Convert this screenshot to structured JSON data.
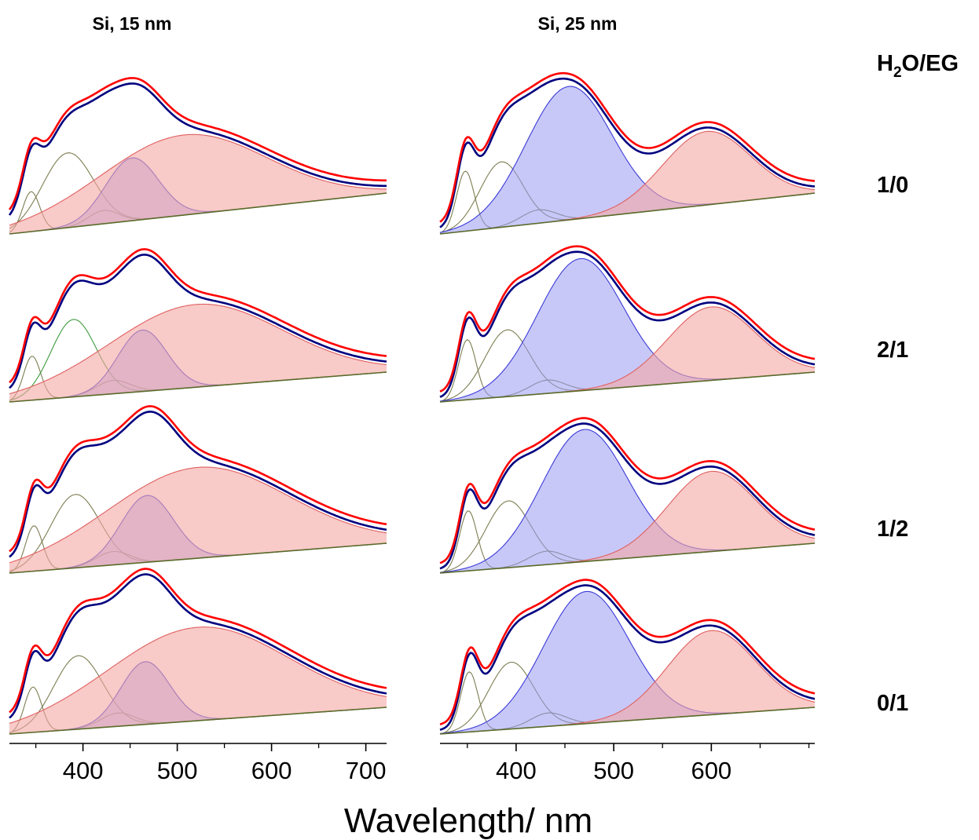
{
  "chart_data": {
    "type": "area",
    "xlabel": "Wavelength/ nm",
    "legend_header": {
      "main": "H",
      "sub": "2",
      "rest": "O/EG"
    },
    "colors": {
      "measured": "#ff0000",
      "fit": "#00007f",
      "blue_band": "#9a9af2",
      "red_band": "#f4a7a4",
      "minor_band": "#7d7d52",
      "green_band": "#3d9a3d",
      "baseline": "#5a6b2a"
    },
    "panels": [
      {
        "title": "Si, 15 nm",
        "xlim": [
          322,
          722
        ],
        "ticks": [
          400,
          500,
          600,
          700
        ],
        "minor_ticks": [
          350,
          450,
          550,
          650
        ],
        "rows": [
          {
            "ratio": "1/0",
            "peaks": [
              {
                "center": 345,
                "amp": 0.3,
                "width": 9,
                "kind": "minor"
              },
              {
                "center": 384,
                "amp": 0.56,
                "width": 27,
                "kind": "minor"
              },
              {
                "center": 422,
                "amp": 0.1,
                "width": 16,
                "kind": "minor"
              },
              {
                "center": 452,
                "amp": 0.47,
                "width": 28,
                "kind": "blue"
              },
              {
                "center": 507,
                "amp": 0.6,
                "width": 88,
                "kind": "red"
              }
            ]
          },
          {
            "ratio": "2/1",
            "peaks": [
              {
                "center": 346,
                "amp": 0.33,
                "width": 9,
                "kind": "minor"
              },
              {
                "center": 390,
                "amp": 0.58,
                "width": 24,
                "kind": "green"
              },
              {
                "center": 432,
                "amp": 0.1,
                "width": 18,
                "kind": "minor"
              },
              {
                "center": 463,
                "amp": 0.46,
                "width": 26,
                "kind": "blue"
              },
              {
                "center": 520,
                "amp": 0.62,
                "width": 92,
                "kind": "red"
              }
            ]
          },
          {
            "ratio": "1/2",
            "peaks": [
              {
                "center": 348,
                "amp": 0.34,
                "width": 9,
                "kind": "minor"
              },
              {
                "center": 392,
                "amp": 0.55,
                "width": 26,
                "kind": "minor"
              },
              {
                "center": 432,
                "amp": 0.1,
                "width": 18,
                "kind": "minor"
              },
              {
                "center": 468,
                "amp": 0.5,
                "width": 28,
                "kind": "blue"
              },
              {
                "center": 522,
                "amp": 0.68,
                "width": 96,
                "kind": "red"
              }
            ]
          },
          {
            "ratio": "0/1",
            "peaks": [
              {
                "center": 347,
                "amp": 0.34,
                "width": 9,
                "kind": "minor"
              },
              {
                "center": 395,
                "amp": 0.55,
                "width": 26,
                "kind": "minor"
              },
              {
                "center": 437,
                "amp": 0.1,
                "width": 18,
                "kind": "minor"
              },
              {
                "center": 466,
                "amp": 0.47,
                "width": 26,
                "kind": "blue"
              },
              {
                "center": 522,
                "amp": 0.7,
                "width": 96,
                "kind": "red"
              }
            ]
          }
        ]
      },
      {
        "title": "Si, 25 nm",
        "xlim": [
          322,
          706
        ],
        "ticks": [
          400,
          500,
          600
        ],
        "minor_ticks": [
          350,
          450,
          550,
          650,
          700
        ],
        "rows": [
          {
            "ratio": "1/0",
            "peaks": [
              {
                "center": 348,
                "amp": 0.45,
                "width": 9,
                "kind": "minor"
              },
              {
                "center": 385,
                "amp": 0.49,
                "width": 22,
                "kind": "minor"
              },
              {
                "center": 423,
                "amp": 0.1,
                "width": 18,
                "kind": "minor"
              },
              {
                "center": 454,
                "amp": 1.0,
                "width": 44,
                "kind": "blue"
              },
              {
                "center": 595,
                "amp": 0.55,
                "width": 45,
                "kind": "red"
              }
            ]
          },
          {
            "ratio": "2/1",
            "peaks": [
              {
                "center": 350,
                "amp": 0.45,
                "width": 9,
                "kind": "minor"
              },
              {
                "center": 391,
                "amp": 0.5,
                "width": 23,
                "kind": "minor"
              },
              {
                "center": 432,
                "amp": 0.1,
                "width": 18,
                "kind": "minor"
              },
              {
                "center": 466,
                "amp": 0.99,
                "width": 44,
                "kind": "blue"
              },
              {
                "center": 600,
                "amp": 0.55,
                "width": 45,
                "kind": "red"
              }
            ]
          },
          {
            "ratio": "1/2",
            "peaks": [
              {
                "center": 351,
                "amp": 0.45,
                "width": 9,
                "kind": "minor"
              },
              {
                "center": 392,
                "amp": 0.5,
                "width": 23,
                "kind": "minor"
              },
              {
                "center": 431,
                "amp": 0.1,
                "width": 18,
                "kind": "minor"
              },
              {
                "center": 470,
                "amp": 0.99,
                "width": 44,
                "kind": "blue"
              },
              {
                "center": 600,
                "amp": 0.6,
                "width": 45,
                "kind": "red"
              }
            ]
          },
          {
            "ratio": "0/1",
            "peaks": [
              {
                "center": 352,
                "amp": 0.45,
                "width": 9,
                "kind": "minor"
              },
              {
                "center": 395,
                "amp": 0.5,
                "width": 23,
                "kind": "minor"
              },
              {
                "center": 433,
                "amp": 0.1,
                "width": 18,
                "kind": "minor"
              },
              {
                "center": 472,
                "amp": 0.99,
                "width": 44,
                "kind": "blue"
              },
              {
                "center": 600,
                "amp": 0.63,
                "width": 45,
                "kind": "red"
              }
            ]
          }
        ]
      }
    ]
  }
}
